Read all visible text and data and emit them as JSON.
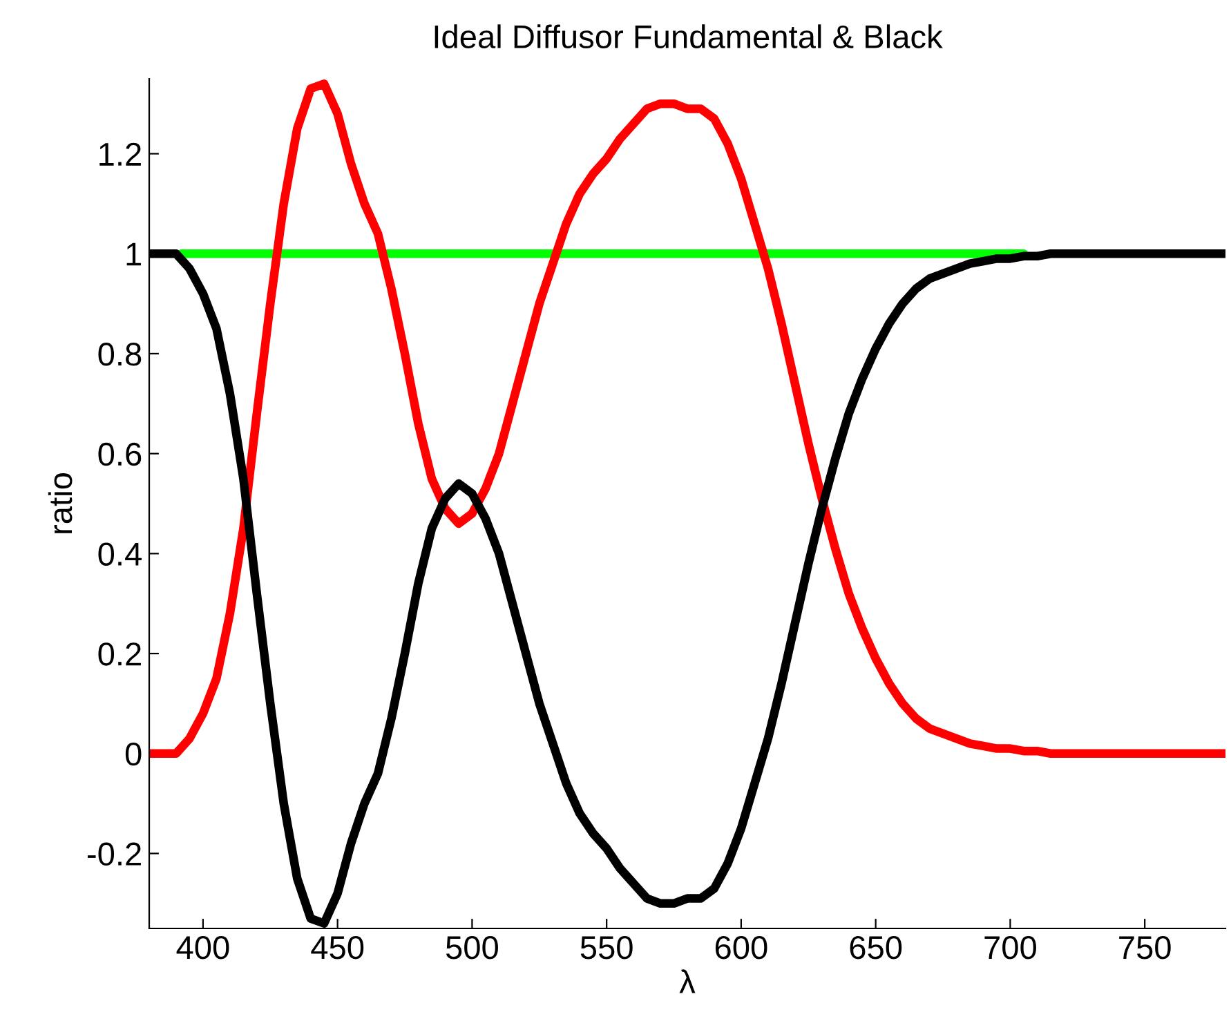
{
  "chart_data": {
    "type": "line",
    "title": "Ideal Diffusor Fundamental & Black",
    "xlabel": "λ",
    "ylabel": "ratio",
    "xlim": [
      380,
      780
    ],
    "ylim": [
      -0.35,
      1.35
    ],
    "xticks": [
      400,
      450,
      500,
      550,
      600,
      650,
      700,
      750
    ],
    "yticks": [
      -0.2,
      0,
      0.2,
      0.4,
      0.6,
      0.8,
      1,
      1.2
    ],
    "grid": false,
    "legend": false,
    "marker": "none",
    "line_style": "solid",
    "series": [
      {
        "color": "#00ff00",
        "x": [
          392,
          705
        ],
        "values": [
          1,
          1
        ]
      },
      {
        "color": "#ff0000",
        "x": [
          380,
          385,
          390,
          395,
          400,
          405,
          410,
          415,
          420,
          425,
          430,
          435,
          440,
          445,
          450,
          455,
          460,
          465,
          470,
          475,
          480,
          485,
          490,
          495,
          500,
          505,
          510,
          515,
          520,
          525,
          530,
          535,
          540,
          545,
          550,
          555,
          560,
          565,
          570,
          575,
          580,
          585,
          590,
          595,
          600,
          605,
          610,
          615,
          620,
          625,
          630,
          635,
          640,
          645,
          650,
          655,
          660,
          665,
          670,
          675,
          680,
          685,
          690,
          695,
          700,
          705,
          710,
          715,
          720,
          780
        ],
        "values": [
          0,
          0,
          0,
          0.03,
          0.08,
          0.15,
          0.28,
          0.45,
          0.68,
          0.9,
          1.1,
          1.25,
          1.33,
          1.34,
          1.28,
          1.18,
          1.1,
          1.04,
          0.93,
          0.8,
          0.66,
          0.55,
          0.49,
          0.46,
          0.48,
          0.53,
          0.6,
          0.7,
          0.8,
          0.9,
          0.98,
          1.06,
          1.12,
          1.16,
          1.19,
          1.23,
          1.26,
          1.29,
          1.3,
          1.3,
          1.29,
          1.29,
          1.27,
          1.22,
          1.15,
          1.06,
          0.97,
          0.86,
          0.74,
          0.62,
          0.51,
          0.41,
          0.32,
          0.25,
          0.19,
          0.14,
          0.1,
          0.07,
          0.05,
          0.04,
          0.03,
          0.02,
          0.015,
          0.01,
          0.01,
          0.005,
          0.005,
          0,
          0,
          0
        ]
      },
      {
        "color": "#000000",
        "x": [
          380,
          385,
          390,
          395,
          400,
          405,
          410,
          415,
          420,
          425,
          430,
          435,
          440,
          445,
          450,
          455,
          460,
          465,
          470,
          475,
          480,
          485,
          490,
          495,
          500,
          505,
          510,
          515,
          520,
          525,
          530,
          535,
          540,
          545,
          550,
          555,
          560,
          565,
          570,
          575,
          580,
          585,
          590,
          595,
          600,
          605,
          610,
          615,
          620,
          625,
          630,
          635,
          640,
          645,
          650,
          655,
          660,
          665,
          670,
          675,
          680,
          685,
          690,
          695,
          700,
          705,
          710,
          715,
          720,
          780
        ],
        "values": [
          1,
          1,
          1,
          0.97,
          0.92,
          0.85,
          0.72,
          0.55,
          0.32,
          0.1,
          -0.1,
          -0.25,
          -0.33,
          -0.34,
          -0.28,
          -0.18,
          -0.1,
          -0.04,
          0.07,
          0.2,
          0.34,
          0.45,
          0.51,
          0.54,
          0.52,
          0.47,
          0.4,
          0.3,
          0.2,
          0.1,
          0.02,
          -0.06,
          -0.12,
          -0.16,
          -0.19,
          -0.23,
          -0.26,
          -0.29,
          -0.3,
          -0.3,
          -0.29,
          -0.29,
          -0.27,
          -0.22,
          -0.15,
          -0.06,
          0.03,
          0.14,
          0.26,
          0.38,
          0.49,
          0.59,
          0.68,
          0.75,
          0.81,
          0.86,
          0.9,
          0.93,
          0.95,
          0.96,
          0.97,
          0.98,
          0.985,
          0.99,
          0.99,
          0.995,
          0.995,
          1,
          1,
          1
        ]
      }
    ]
  }
}
